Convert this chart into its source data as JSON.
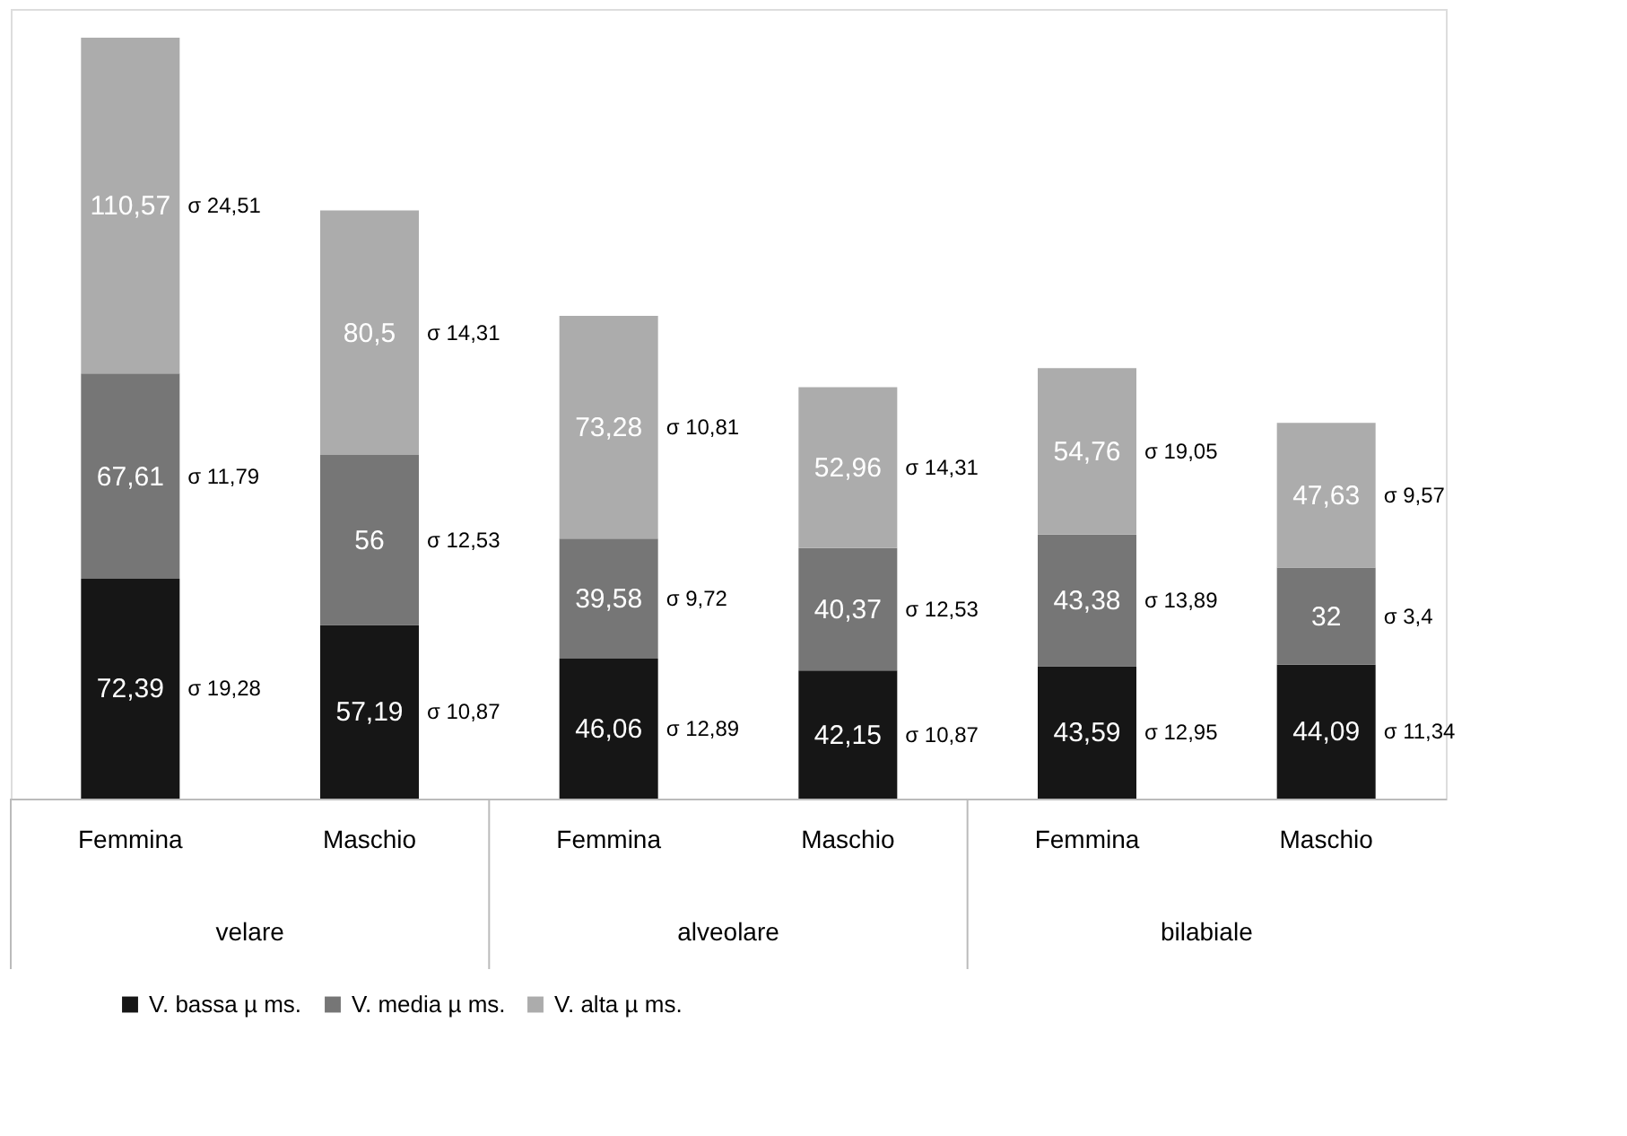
{
  "chart_data": {
    "type": "bar",
    "stacked": true,
    "legend": "bottom",
    "grid": false,
    "categories": [
      "Femmina",
      "Maschio",
      "Femmina",
      "Maschio",
      "Femmina",
      "Maschio"
    ],
    "series": [
      {
        "name": "V. bassa µ ms.",
        "color": "#161616",
        "values": [
          72.39,
          57.19,
          46.06,
          42.15,
          43.59,
          44.09
        ],
        "value_labels": [
          "72,39",
          "57,19",
          "46,06",
          "42,15",
          "43,59",
          "44,09"
        ]
      },
      {
        "name": "V. media µ ms.",
        "color": "#767676",
        "values": [
          67.61,
          56,
          39.58,
          40.37,
          43.38,
          32
        ],
        "value_labels": [
          "67,61",
          "56",
          "39,58",
          "40,37",
          "43,38",
          "32"
        ]
      },
      {
        "name": "V. alta µ ms.",
        "color": "#acacac",
        "values": [
          110.57,
          80.5,
          73.28,
          52.96,
          54.76,
          47.63
        ],
        "value_labels": [
          "110,57",
          "80,5",
          "73,28",
          "52,96",
          "54,76",
          "47,63"
        ]
      }
    ],
    "annotations": [
      "velare",
      "alveolare",
      "bilabiale",
      "σ 19,28",
      "σ 10,87",
      "σ 12,89",
      "σ 10,87",
      "σ 12,95",
      "σ 11,34",
      "σ 11,79",
      "σ 12,53",
      "σ 9,72",
      "σ 12,53",
      "σ 13,89",
      "σ 3,4",
      "σ 24,51",
      "σ 14,31",
      "σ 10,81",
      "σ 14,31",
      "σ 19,05",
      "σ 9,57"
    ]
  }
}
